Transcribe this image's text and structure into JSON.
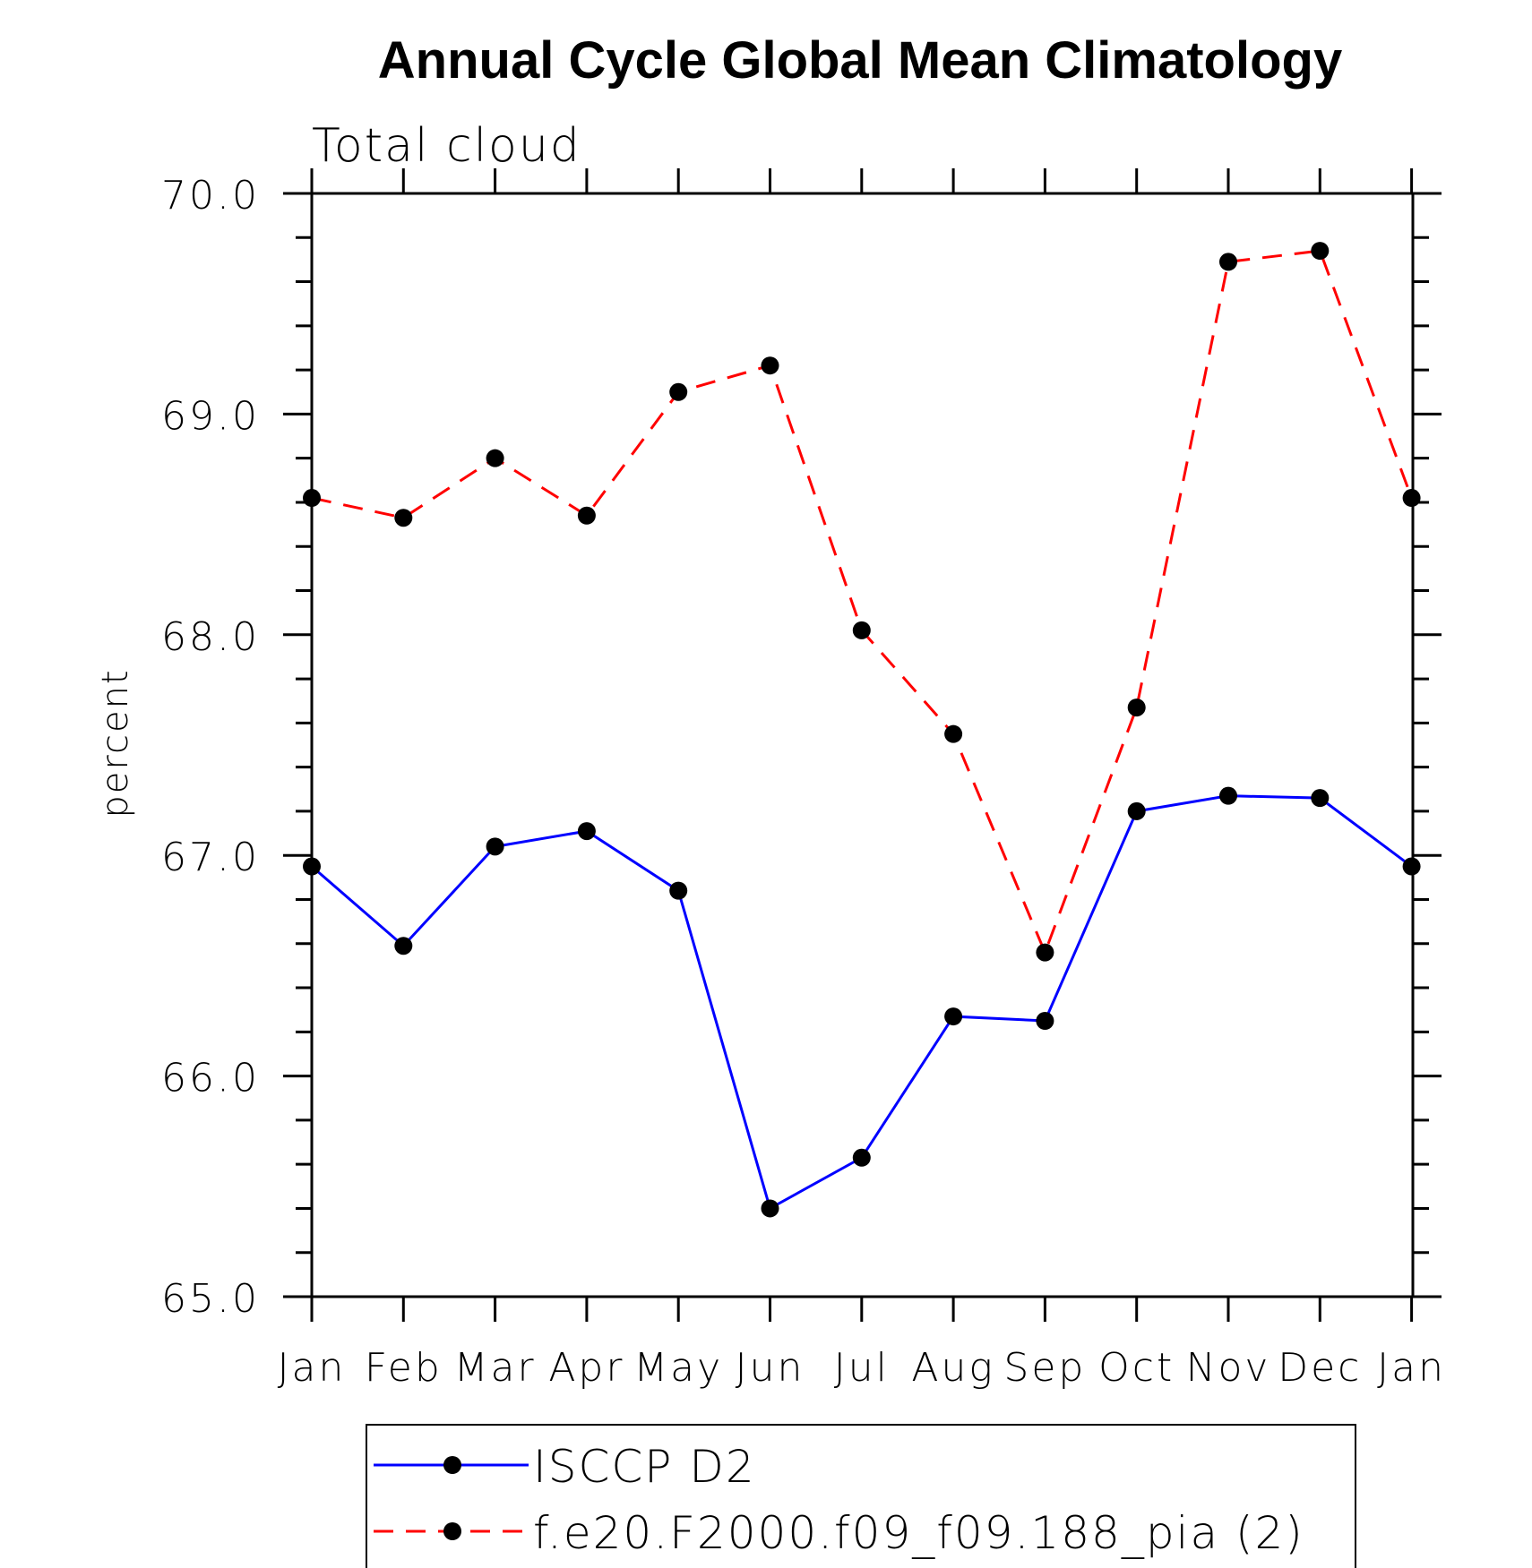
{
  "chart_data": {
    "type": "line",
    "title": "Annual Cycle Global Mean Climatology",
    "subtitle": "Total cloud",
    "xlabel": "",
    "ylabel": "percent",
    "categories": [
      "Jan",
      "Feb",
      "Mar",
      "Apr",
      "May",
      "Jun",
      "Jul",
      "Aug",
      "Sep",
      "Oct",
      "Nov",
      "Dec",
      "Jan"
    ],
    "ylim": [
      65.0,
      70.0
    ],
    "yticks": [
      "65.0",
      "66.0",
      "67.0",
      "68.0",
      "69.0",
      "70.0"
    ],
    "grid": false,
    "legend_position": "bottom",
    "series": [
      {
        "name": "ISCCP D2",
        "color": "#0000ff",
        "dash": "solid",
        "values": [
          66.95,
          66.59,
          67.04,
          67.11,
          66.84,
          65.4,
          65.63,
          66.27,
          66.25,
          67.2,
          67.27,
          67.26,
          66.95
        ]
      },
      {
        "name": "f.e20.F2000.f09_f09.188_pia (2)",
        "color": "#ff0000",
        "dash": "dashed",
        "values": [
          68.62,
          68.53,
          68.8,
          68.54,
          69.1,
          69.22,
          68.02,
          67.55,
          66.56,
          67.67,
          69.69,
          69.74,
          68.62
        ]
      }
    ]
  }
}
